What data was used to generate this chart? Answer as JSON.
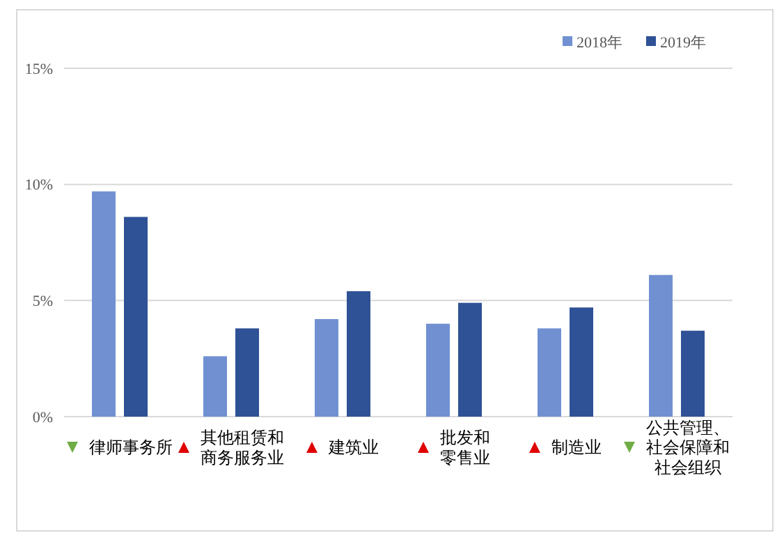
{
  "chart_data": {
    "type": "bar",
    "categories": [
      "律师事务所",
      "其他租赁和商务服务业",
      "建筑业",
      "批发和零售业",
      "制造业",
      "公共管理、社会保障和社会组织"
    ],
    "series": [
      {
        "name": "2018年",
        "color": "#7090d2",
        "values": [
          9.7,
          2.6,
          4.2,
          4.0,
          3.8,
          6.1
        ]
      },
      {
        "name": "2019年",
        "color": "#2f5196",
        "values": [
          8.6,
          3.8,
          5.4,
          4.9,
          4.7,
          3.7
        ]
      }
    ],
    "ylim": [
      0,
      15
    ],
    "yticks": [
      {
        "value": 0,
        "label": "0%"
      },
      {
        "value": 5,
        "label": "5%"
      },
      {
        "value": 10,
        "label": "10%"
      },
      {
        "value": 15,
        "label": "15%"
      }
    ],
    "grid": "y",
    "legend": "top right"
  }
}
